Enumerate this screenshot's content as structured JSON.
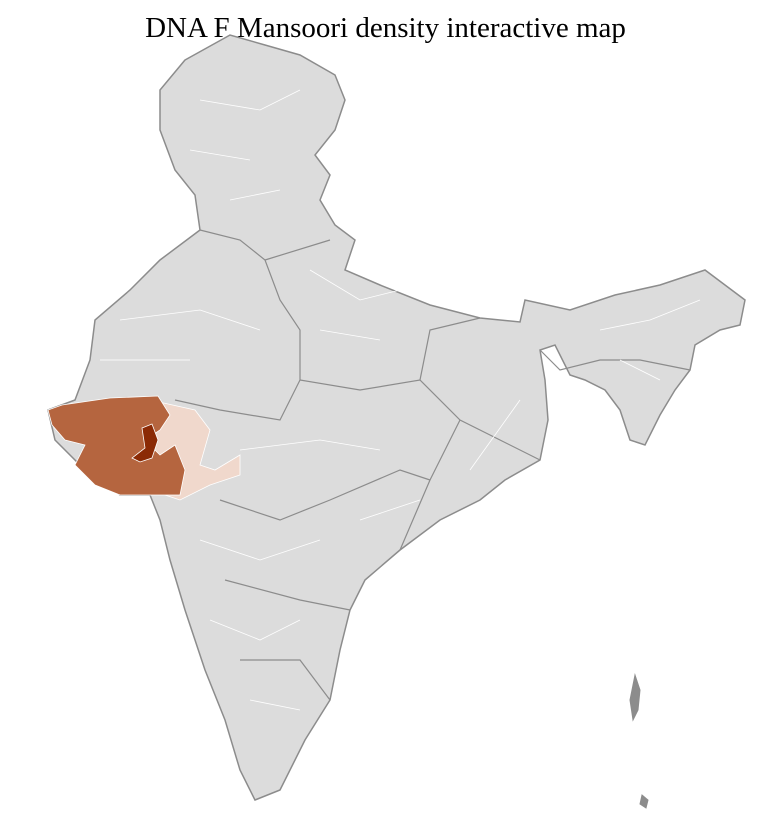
{
  "title": "DNA F Mansoori density interactive map",
  "colors": {
    "land": "#dcdcdc",
    "border": "#8c8c8c",
    "district_lines": "#ffffff",
    "high": "#b5653f",
    "highest": "#8b2a05",
    "low": "#f0d8cc"
  }
}
